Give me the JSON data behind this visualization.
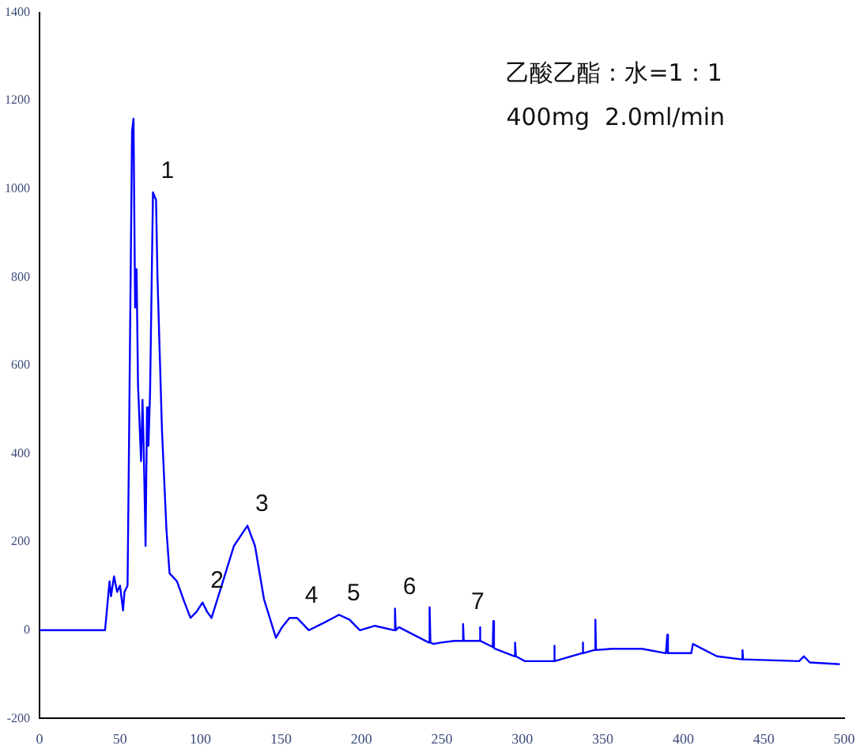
{
  "chart_data": {
    "type": "line",
    "marker": "none",
    "grid": false,
    "legend": false,
    "xlim": [
      0,
      500
    ],
    "xticks": [
      0,
      50,
      100,
      150,
      200,
      250,
      300,
      350,
      400,
      450,
      500
    ],
    "ylim": [
      -200,
      1400
    ],
    "yticks": [
      -200,
      0,
      200,
      400,
      600,
      800,
      1000,
      1200,
      1400
    ],
    "x": [
      0,
      40.7,
      41.6,
      43.5,
      44.4,
      46.3,
      48.2,
      50,
      51.9,
      52.8,
      54.7,
      55.6,
      57.5,
      58.4,
      59.4,
      60.3,
      61.2,
      63.1,
      64,
      64.9,
      65.9,
      66.8,
      67.7,
      68.7,
      69.6,
      70.5,
      72.4,
      73.3,
      76.1,
      78.9,
      80.8,
      85.4,
      90.1,
      93.8,
      97.6,
      101.3,
      104.1,
      106.9,
      113.4,
      120.8,
      129.2,
      133.9,
      139.5,
      146.9,
      150.7,
      155.3,
      160,
      167.4,
      176.7,
      186.1,
      192.6,
      199.1,
      208.4,
      220.5,
      220.9,
      221.3,
      223.3,
      241.9,
      242.4,
      242.9,
      244.8,
      249.4,
      257.8,
      262.8,
      263.2,
      263.6,
      273.2,
      273.6,
      274,
      281.6,
      282,
      282.4,
      283,
      295,
      295.5,
      296,
      301.6,
      319.3,
      319.8,
      320.2,
      337,
      337.5,
      337.9,
      344.5,
      345,
      345.4,
      345.8,
      355.6,
      374.3,
      389.2,
      389.7,
      390.1,
      390.5,
      405,
      405.5,
      406,
      420.9,
      436.3,
      436.8,
      437.2,
      472,
      474.9,
      478.6,
      497.3
    ],
    "series": [
      {
        "color": "#0000ff",
        "values": [
          0,
          0,
          35,
          111,
          77,
          122,
          87,
          101,
          45,
          87,
          101,
          418,
          1131,
          1159,
          731,
          818,
          557,
          383,
          522,
          383,
          191,
          505,
          418,
          540,
          766,
          992,
          975,
          800,
          452,
          226,
          129,
          111,
          63,
          28,
          42,
          63,
          42,
          28,
          104,
          191,
          237,
          191,
          70,
          -17,
          7,
          28,
          28,
          0,
          17,
          35,
          24,
          0,
          10,
          0,
          49,
          0,
          7,
          -28,
          52,
          -28,
          -31,
          -28,
          -24,
          -24,
          14,
          -24,
          -24,
          7,
          -24,
          -38,
          21,
          -40,
          -42,
          -59,
          -28,
          -59,
          -70,
          -70,
          -35,
          -70,
          -52,
          -28,
          -52,
          -45,
          -45,
          24,
          -45,
          -42,
          -42,
          -52,
          -52,
          -10,
          -52,
          -52,
          -52,
          -31,
          -59,
          -66,
          -45,
          -66,
          -70,
          -59,
          -73,
          -77
        ]
      }
    ],
    "annotations": [
      {
        "text": "1",
        "x": 70.5,
        "y": 992
      },
      {
        "text": "2",
        "x": 101.3,
        "y": 63
      },
      {
        "text": "3",
        "x": 129.2,
        "y": 237
      },
      {
        "text": "4",
        "x": 160,
        "y": 28
      },
      {
        "text": "5",
        "x": 186.1,
        "y": 35
      },
      {
        "text": "6",
        "x": 220.9,
        "y": 49
      },
      {
        "text": "7",
        "x": 263.2,
        "y": 14
      },
      "乙酸乙酯：水=1：1",
      "400mg  2.0ml/min"
    ]
  }
}
